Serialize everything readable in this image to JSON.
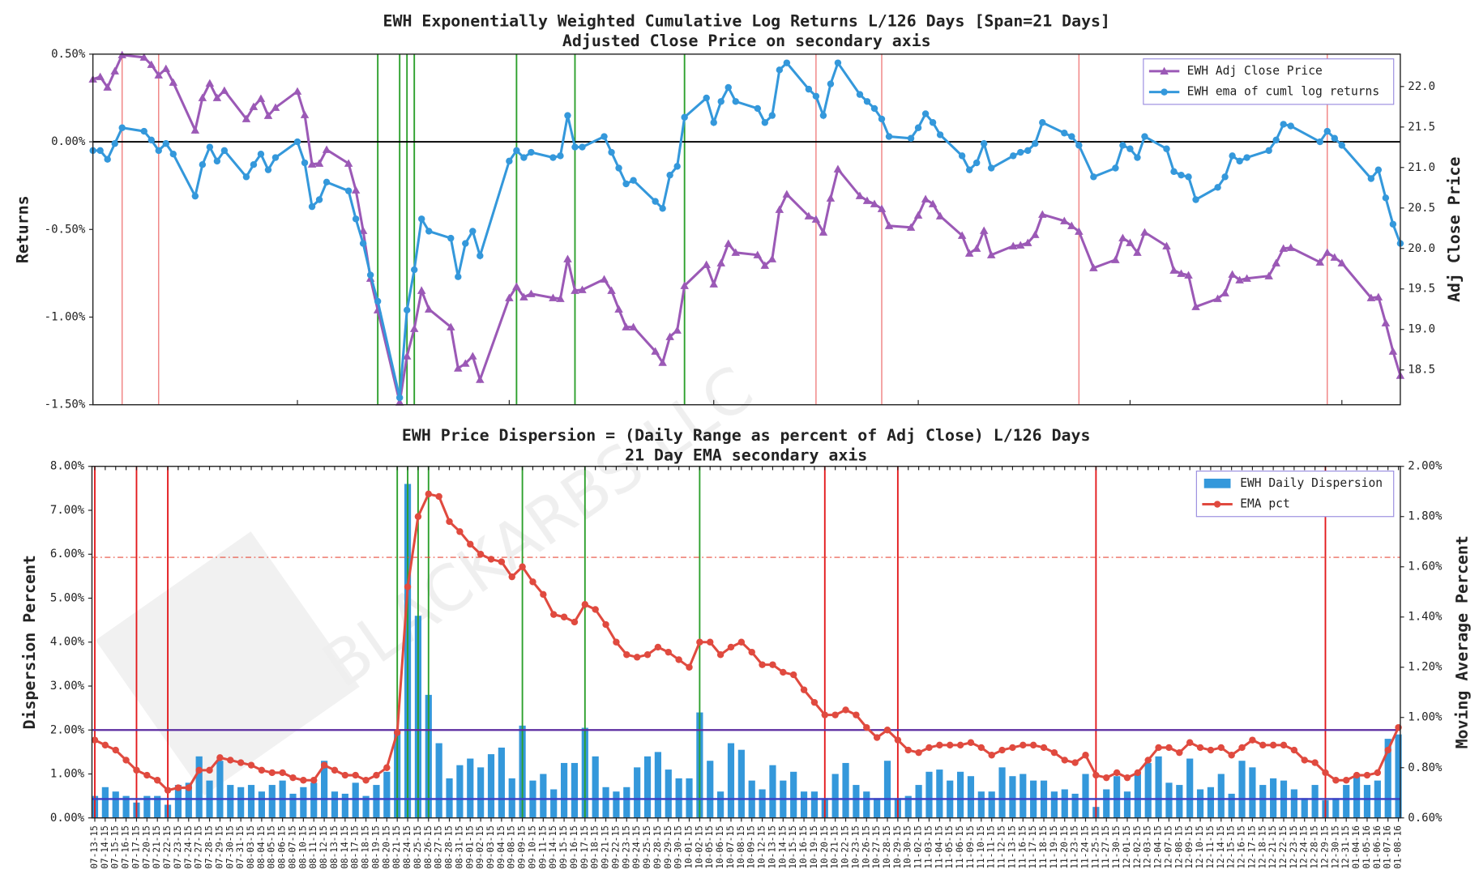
{
  "watermark": "BLACKARBS LLC",
  "chart_data": [
    {
      "type": "line",
      "title": "EWH Exponentially Weighted Cumulative Log Returns L/126 Days [Span=21 Days]",
      "subtitle": "Adjusted Close Price on secondary axis",
      "ylabel": "Returns",
      "y2label": "Adj Close Price",
      "ylim": [
        -1.5,
        0.5
      ],
      "yticks": [
        {
          "value": 0.5,
          "label": "0.50%"
        },
        {
          "value": 0,
          "label": "0.00%"
        },
        {
          "value": -0.5,
          "label": "-0.50%"
        },
        {
          "value": -1,
          "label": "-1.00%"
        },
        {
          "value": -1.5,
          "label": "-1.50%"
        }
      ],
      "y2lim": [
        18.07,
        22.4
      ],
      "y2ticks": [
        {
          "value": 22,
          "label": "22.0"
        },
        {
          "value": 21.5,
          "label": "21.5"
        },
        {
          "value": 21,
          "label": "21.0"
        },
        {
          "value": 20.5,
          "label": "20.5"
        },
        {
          "value": 20,
          "label": "20.0"
        },
        {
          "value": 19.5,
          "label": "19.5"
        },
        {
          "value": 19,
          "label": "19.0"
        },
        {
          "value": 18.5,
          "label": "18.5"
        }
      ],
      "hline": 0,
      "legend": "upper right",
      "red_vlines": [
        "07-17-15",
        "07-22-15",
        "10-20-15",
        "10-29-15",
        "11-25-15",
        "12-29-15"
      ],
      "green_vlines": [
        "08-21-15",
        "08-24-15",
        "08-25-15",
        "08-26-15",
        "09-09-15",
        "09-17-15",
        "10-02-15"
      ],
      "series": [
        {
          "name": "EWH Adj Close Price",
          "color": "#9b59b6",
          "marker": "triangle",
          "axis": "y2",
          "values": [
            22.09,
            22.12,
            21.99,
            22.19,
            22.39,
            22.36,
            22.27,
            22.14,
            22.22,
            22.05,
            21.46,
            21.86,
            22.04,
            21.86,
            21.95,
            21.6,
            21.75,
            21.85,
            21.64,
            21.74,
            21.94,
            21.65,
            21.04,
            21.05,
            21.22,
            21.05,
            20.72,
            20.22,
            19.63,
            19.24,
            18.1,
            18.67,
            19.01,
            19.48,
            19.25,
            19.03,
            18.52,
            18.58,
            18.67,
            18.38,
            19.39,
            19.53,
            19.4,
            19.44,
            19.39,
            19.38,
            19.87,
            19.48,
            19.49,
            19.62,
            19.48,
            19.25,
            19.03,
            19.03,
            18.73,
            18.59,
            18.91,
            18.99,
            19.54,
            19.8,
            19.56,
            19.82,
            20.06,
            19.95,
            19.92,
            19.79,
            19.87,
            20.48,
            20.67,
            20.4,
            20.36,
            20.2,
            20.62,
            20.98,
            20.65,
            20.59,
            20.55,
            20.49,
            20.28,
            20.26,
            20.41,
            20.61,
            20.55,
            20.4,
            20.16,
            19.94,
            20.0,
            20.22,
            19.92,
            20.03,
            20.04,
            20.07,
            20.17,
            20.42,
            20.34,
            20.28,
            20.21,
            19.76,
            19.86,
            20.13,
            20.07,
            19.95,
            20.2,
            20.03,
            19.73,
            19.69,
            19.67,
            19.28,
            19.38,
            19.45,
            19.68,
            19.61,
            19.63,
            19.66,
            19.82,
            20.0,
            20.01,
            19.83,
            19.95,
            19.89,
            19.82,
            19.39,
            19.4,
            19.08,
            18.73,
            18.43
          ]
        },
        {
          "name": "EWH ema of cuml log returns",
          "color": "#3498db",
          "marker": "circle",
          "values": [
            -0.05,
            -0.05,
            -0.1,
            -0.01,
            0.08,
            0.06,
            0.01,
            -0.05,
            -0.01,
            -0.07,
            -0.31,
            -0.13,
            -0.03,
            -0.11,
            -0.05,
            -0.2,
            -0.13,
            -0.07,
            -0.16,
            -0.09,
            0.0,
            -0.12,
            -0.37,
            -0.33,
            -0.23,
            -0.28,
            -0.44,
            -0.58,
            -0.76,
            -0.91,
            -1.46,
            -0.96,
            -0.73,
            -0.44,
            -0.51,
            -0.55,
            -0.77,
            -0.58,
            -0.51,
            -0.65,
            -0.11,
            -0.05,
            -0.09,
            -0.06,
            -0.09,
            -0.08,
            0.15,
            -0.03,
            -0.03,
            0.03,
            -0.06,
            -0.15,
            -0.24,
            -0.22,
            -0.34,
            -0.38,
            -0.19,
            -0.14,
            0.14,
            0.25,
            0.11,
            0.23,
            0.31,
            0.23,
            0.19,
            0.11,
            0.15,
            0.41,
            0.45,
            0.3,
            0.26,
            0.15,
            0.33,
            0.45,
            0.27,
            0.23,
            0.19,
            0.13,
            0.03,
            0.02,
            0.08,
            0.16,
            0.11,
            0.04,
            -0.08,
            -0.16,
            -0.12,
            -0.01,
            -0.15,
            -0.08,
            -0.06,
            -0.05,
            -0.01,
            0.11,
            0.05,
            0.03,
            -0.02,
            -0.2,
            -0.15,
            -0.02,
            -0.04,
            -0.09,
            0.03,
            -0.04,
            -0.17,
            -0.19,
            -0.2,
            -0.33,
            -0.26,
            -0.2,
            -0.08,
            -0.11,
            -0.09,
            -0.05,
            0.01,
            0.1,
            0.09,
            0.0,
            0.06,
            0.02,
            -0.02,
            -0.21,
            -0.16,
            -0.32,
            -0.47,
            -0.58
          ]
        }
      ]
    },
    {
      "type": "bar",
      "title": "EWH Price Dispersion = (Daily Range as percent of Adj Close) L/126 Days",
      "subtitle": "21 Day EMA secondary axis",
      "ylabel": "Dispersion Percent",
      "y2label": "Moving Average Percent",
      "ylim": [
        0,
        8
      ],
      "yticks": [
        {
          "value": 0,
          "label": "0.00%"
        },
        {
          "value": 1,
          "label": "1.00%"
        },
        {
          "value": 2,
          "label": "2.00%"
        },
        {
          "value": 3,
          "label": "3.00%"
        },
        {
          "value": 4,
          "label": "4.00%"
        },
        {
          "value": 5,
          "label": "5.00%"
        },
        {
          "value": 6,
          "label": "6.00%"
        },
        {
          "value": 7,
          "label": "7.00%"
        },
        {
          "value": 8,
          "label": "8.00%"
        }
      ],
      "y2lim": [
        0.6,
        2.0
      ],
      "y2ticks": [
        {
          "value": 0.6,
          "label": "0.60%"
        },
        {
          "value": 0.8,
          "label": "0.80%"
        },
        {
          "value": 1.0,
          "label": "1.00%"
        },
        {
          "value": 1.2,
          "label": "1.20%"
        },
        {
          "value": 1.4,
          "label": "1.40%"
        },
        {
          "value": 1.6,
          "label": "1.60%"
        },
        {
          "value": 1.8,
          "label": "1.80%"
        },
        {
          "value": 2.0,
          "label": "2.00%"
        }
      ],
      "hlines": [
        {
          "value": 2,
          "color": "#5b2ca0",
          "style": "solid"
        },
        {
          "value": 0.43,
          "color": "#3a3fc4",
          "style": "solid"
        },
        {
          "value": 5.93,
          "color": "#e74c3c",
          "style": "dashdot"
        }
      ],
      "legend": "upper right",
      "red_vlines": [
        "07-13-15",
        "07-17-15",
        "07-22-15",
        "10-20-15",
        "10-29-15",
        "11-25-15",
        "12-29-15"
      ],
      "green_vlines": [
        "08-21-15",
        "08-24-15",
        "08-25-15",
        "08-26-15",
        "09-09-15",
        "09-17-15",
        "10-02-15"
      ],
      "categories": [
        "07-13-15",
        "07-14-15",
        "07-15-15",
        "07-16-15",
        "07-17-15",
        "07-20-15",
        "07-21-15",
        "07-22-15",
        "07-23-15",
        "07-24-15",
        "07-27-15",
        "07-28-15",
        "07-29-15",
        "07-30-15",
        "07-31-15",
        "08-03-15",
        "08-04-15",
        "08-05-15",
        "08-06-15",
        "08-07-15",
        "08-10-15",
        "08-11-15",
        "08-12-15",
        "08-13-15",
        "08-14-15",
        "08-17-15",
        "08-18-15",
        "08-19-15",
        "08-20-15",
        "08-21-15",
        "08-24-15",
        "08-25-15",
        "08-26-15",
        "08-27-15",
        "08-28-15",
        "08-31-15",
        "09-01-15",
        "09-02-15",
        "09-03-15",
        "09-04-15",
        "09-08-15",
        "09-09-15",
        "09-10-15",
        "09-11-15",
        "09-14-15",
        "09-15-15",
        "09-16-15",
        "09-17-15",
        "09-18-15",
        "09-21-15",
        "09-22-15",
        "09-23-15",
        "09-24-15",
        "09-25-15",
        "09-28-15",
        "09-29-15",
        "09-30-15",
        "10-01-15",
        "10-02-15",
        "10-05-15",
        "10-06-15",
        "10-07-15",
        "10-08-15",
        "10-09-15",
        "10-12-15",
        "10-13-15",
        "10-14-15",
        "10-15-15",
        "10-16-15",
        "10-19-15",
        "10-20-15",
        "10-21-15",
        "10-22-15",
        "10-23-15",
        "10-26-15",
        "10-27-15",
        "10-28-15",
        "10-29-15",
        "10-30-15",
        "11-02-15",
        "11-03-15",
        "11-04-15",
        "11-05-15",
        "11-06-15",
        "11-09-15",
        "11-10-15",
        "11-11-15",
        "11-12-15",
        "11-13-15",
        "11-16-15",
        "11-17-15",
        "11-18-15",
        "11-19-15",
        "11-20-15",
        "11-23-15",
        "11-24-15",
        "11-25-15",
        "11-27-15",
        "11-30-15",
        "12-01-15",
        "12-02-15",
        "12-03-15",
        "12-04-15",
        "12-07-15",
        "12-08-15",
        "12-09-15",
        "12-10-15",
        "12-11-15",
        "12-14-15",
        "12-15-15",
        "12-16-15",
        "12-17-15",
        "12-18-15",
        "12-21-15",
        "12-22-15",
        "12-23-15",
        "12-24-15",
        "12-28-15",
        "12-29-15",
        "12-30-15",
        "12-31-15",
        "01-04-16",
        "01-05-16",
        "01-06-16",
        "01-07-16",
        "01-08-16"
      ],
      "series": [
        {
          "name": "EWH Daily Dispersion",
          "color": "#3498db",
          "type": "bar",
          "values": [
            0.5,
            0.7,
            0.6,
            0.5,
            0.35,
            0.5,
            0.5,
            0.3,
            0.75,
            0.8,
            1.4,
            0.85,
            1.3,
            0.75,
            0.7,
            0.75,
            0.6,
            0.75,
            0.85,
            0.55,
            0.7,
            0.8,
            1.3,
            0.6,
            0.55,
            0.8,
            0.5,
            0.75,
            1.05,
            2.0,
            7.6,
            4.6,
            2.8,
            1.7,
            0.9,
            1.2,
            1.35,
            1.15,
            1.45,
            1.6,
            0.9,
            2.1,
            0.85,
            1.0,
            0.65,
            1.25,
            1.25,
            2.05,
            1.4,
            0.7,
            0.6,
            0.7,
            1.15,
            1.4,
            1.5,
            1.1,
            0.9,
            0.9,
            2.4,
            1.3,
            0.6,
            1.7,
            1.55,
            0.85,
            0.65,
            1.2,
            0.85,
            1.05,
            0.6,
            0.6,
            0.45,
            1.0,
            1.25,
            0.75,
            0.6,
            0.45,
            1.3,
            0.45,
            0.5,
            0.75,
            1.05,
            1.1,
            0.85,
            1.05,
            0.95,
            0.6,
            0.6,
            1.15,
            0.95,
            1.0,
            0.85,
            0.85,
            0.6,
            0.65,
            0.55,
            1.0,
            0.25,
            0.65,
            0.95,
            0.6,
            1.0,
            1.25,
            1.4,
            0.8,
            0.75,
            1.35,
            0.65,
            0.7,
            1.0,
            0.55,
            1.3,
            1.15,
            0.75,
            0.9,
            0.85,
            0.65,
            0.45,
            0.75,
            0.4,
            0.45,
            0.75,
            0.95,
            0.75,
            0.85,
            1.8,
            1.9
          ]
        },
        {
          "name": "EMA pct",
          "color": "#e04a3f",
          "type": "line",
          "marker": "circle",
          "axis": "y2",
          "values": [
            0.91,
            0.89,
            0.87,
            0.83,
            0.79,
            0.77,
            0.75,
            0.71,
            0.72,
            0.72,
            0.79,
            0.79,
            0.84,
            0.83,
            0.82,
            0.81,
            0.79,
            0.78,
            0.78,
            0.76,
            0.75,
            0.75,
            0.81,
            0.79,
            0.77,
            0.77,
            0.75,
            0.77,
            0.8,
            0.94,
            1.52,
            1.8,
            1.89,
            1.88,
            1.78,
            1.74,
            1.69,
            1.65,
            1.63,
            1.62,
            1.56,
            1.6,
            1.54,
            1.49,
            1.41,
            1.4,
            1.38,
            1.45,
            1.43,
            1.37,
            1.3,
            1.25,
            1.24,
            1.25,
            1.28,
            1.26,
            1.23,
            1.2,
            1.3,
            1.3,
            1.25,
            1.28,
            1.3,
            1.26,
            1.21,
            1.21,
            1.18,
            1.17,
            1.11,
            1.06,
            1.01,
            1.01,
            1.03,
            1.01,
            0.96,
            0.92,
            0.95,
            0.91,
            0.87,
            0.86,
            0.88,
            0.89,
            0.89,
            0.89,
            0.9,
            0.88,
            0.85,
            0.87,
            0.88,
            0.89,
            0.89,
            0.88,
            0.86,
            0.83,
            0.82,
            0.85,
            0.77,
            0.76,
            0.78,
            0.76,
            0.78,
            0.83,
            0.88,
            0.88,
            0.86,
            0.9,
            0.88,
            0.87,
            0.88,
            0.85,
            0.88,
            0.91,
            0.89,
            0.89,
            0.89,
            0.87,
            0.83,
            0.82,
            0.78,
            0.75,
            0.75,
            0.77,
            0.77,
            0.78,
            0.87,
            0.96
          ]
        }
      ]
    }
  ]
}
